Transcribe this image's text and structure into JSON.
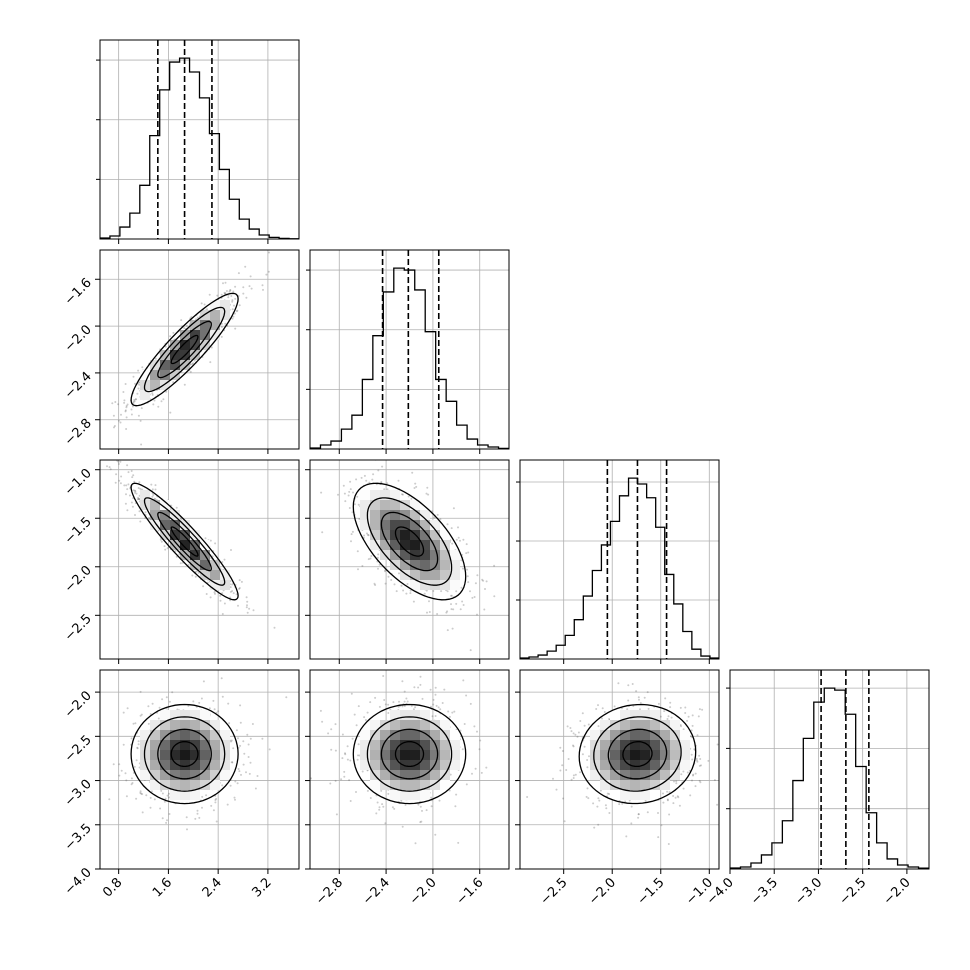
{
  "chart_data": {
    "type": "corner",
    "params": [
      {
        "range": [
          0.5,
          3.7
        ],
        "ticks": [
          0.8,
          1.6,
          2.4,
          3.2
        ],
        "tick_labels": [
          "0.8",
          "1.6",
          "2.4",
          "3.2"
        ],
        "quantiles": [
          1.43,
          1.86,
          2.3
        ],
        "mean": 1.86,
        "sd": 0.43,
        "hist": [
          0.5,
          1.5,
          6,
          13,
          27,
          52,
          75,
          89,
          91,
          84,
          71,
          53,
          35,
          20,
          10,
          5,
          2,
          0.8,
          0.3,
          0.1
        ],
        "hist_max": 91
      },
      {
        "range": [
          -3.05,
          -1.35
        ],
        "ticks": [
          -2.8,
          -2.4,
          -2.0,
          -1.6
        ],
        "tick_labels": [
          "−2.8",
          "−2.4",
          "−2.0",
          "−1.6"
        ],
        "quantiles": [
          -2.43,
          -2.21,
          -1.95
        ],
        "mean": -2.2,
        "sd": 0.24,
        "hist": [
          0.5,
          2,
          4,
          10,
          17,
          35,
          57,
          79,
          91,
          90,
          80,
          59,
          35,
          24,
          12,
          5,
          2,
          1,
          0.3
        ],
        "hist_max": 91
      },
      {
        "range": [
          -2.95,
          -0.9
        ],
        "ticks": [
          -2.5,
          -2.0,
          -1.5,
          -1.0
        ],
        "tick_labels": [
          "−2.5",
          "−2.0",
          "−1.5",
          "−1.0"
        ],
        "quantiles": [
          -2.05,
          -1.74,
          -1.44
        ],
        "mean": -1.74,
        "sd": 0.3,
        "hist": [
          0.5,
          1,
          2,
          4,
          7,
          12,
          20,
          32,
          45,
          58,
          70,
          83,
          92,
          89,
          82,
          67,
          43,
          28,
          14,
          5,
          1.5,
          0.5
        ],
        "hist_max": 92
      },
      {
        "range": [
          -4.0,
          -1.75
        ],
        "ticks": [
          -4.0,
          -3.5,
          -3.0,
          -2.5,
          -2.0
        ],
        "tick_labels": [
          "−4.0",
          "−3.5",
          "−3.0",
          "−2.5",
          "−2.0"
        ],
        "quantiles": [
          -2.97,
          -2.69,
          -2.43
        ],
        "mean": -2.7,
        "sd": 0.28,
        "hist": [
          0.5,
          1,
          3,
          7,
          13,
          24,
          44,
          65,
          83,
          90,
          89,
          77,
          51,
          28,
          13,
          5,
          2,
          1,
          0.4
        ],
        "hist_max": 90
      }
    ],
    "correlations": [
      [
        1,
        0.9,
        -0.93,
        0
      ],
      [
        0.9,
        1,
        -0.6,
        0
      ],
      [
        -0.93,
        -0.6,
        1,
        0.05
      ],
      [
        0,
        0,
        0.05,
        1
      ]
    ],
    "grid": true,
    "colors": {
      "histogram": "#000000",
      "scatter": "#555555",
      "contour": "#000000",
      "quantile_line": "#000000",
      "grid": "#b0b0b0"
    }
  }
}
